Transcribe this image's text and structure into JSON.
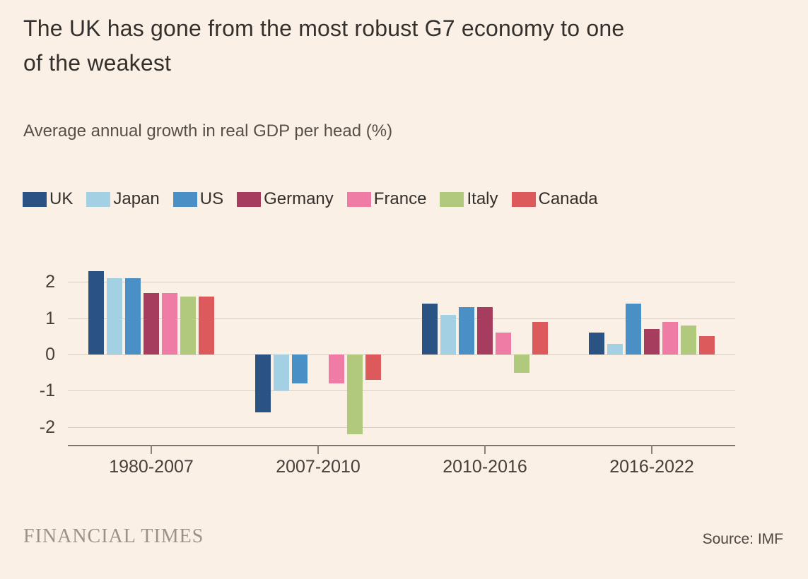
{
  "page": {
    "title": "The UK has gone from the most robust G7 economy to one of the weakest",
    "subtitle": "Average annual growth in real GDP per head (%)",
    "brand": "FINANCIAL TIMES",
    "source": "Source: IMF"
  },
  "colors": {
    "background": "#FBF0E5",
    "title_text": "#33302E",
    "subtitle_text": "#56504B",
    "axis_label_text": "#45403B",
    "legend_text": "#33302E",
    "gridline": "#D8CDC2",
    "axis_line": "#7E766E",
    "tick": "#8A8178",
    "brand_text": "#9B9289",
    "source_text": "#4C4743"
  },
  "chart_data": {
    "type": "bar",
    "title": "The UK has gone from the most robust G7 economy to one of the weakest",
    "subtitle": "Average annual growth in real GDP per head (%)",
    "xlabel": "",
    "ylabel": "Average annual growth in real GDP per head (%)",
    "categories": [
      "1980-2007",
      "2007-2010",
      "2010-2016",
      "2016-2022"
    ],
    "series": [
      {
        "name": "UK",
        "color": "#2A5283",
        "values": [
          2.3,
          -1.6,
          1.4,
          0.6
        ]
      },
      {
        "name": "Japan",
        "color": "#A3D0E3",
        "values": [
          2.1,
          -1.0,
          1.1,
          0.3
        ]
      },
      {
        "name": "US",
        "color": "#4A8FC6",
        "values": [
          2.1,
          -0.8,
          1.3,
          1.4
        ]
      },
      {
        "name": "Germany",
        "color": "#A63D5E",
        "values": [
          1.7,
          0.0,
          1.3,
          0.7
        ]
      },
      {
        "name": "France",
        "color": "#EE7CA4",
        "values": [
          1.7,
          -0.8,
          0.6,
          0.9
        ]
      },
      {
        "name": "Italy",
        "color": "#B1C97D",
        "values": [
          1.6,
          -2.2,
          -0.5,
          0.8
        ]
      },
      {
        "name": "Canada",
        "color": "#DC5A5C",
        "values": [
          1.6,
          -0.7,
          0.9,
          0.5
        ]
      }
    ],
    "ylim": [
      -2.5,
      2.5
    ],
    "yticks": [
      2,
      1,
      0,
      -1,
      -2
    ],
    "grid": true,
    "legend_position": "top"
  }
}
